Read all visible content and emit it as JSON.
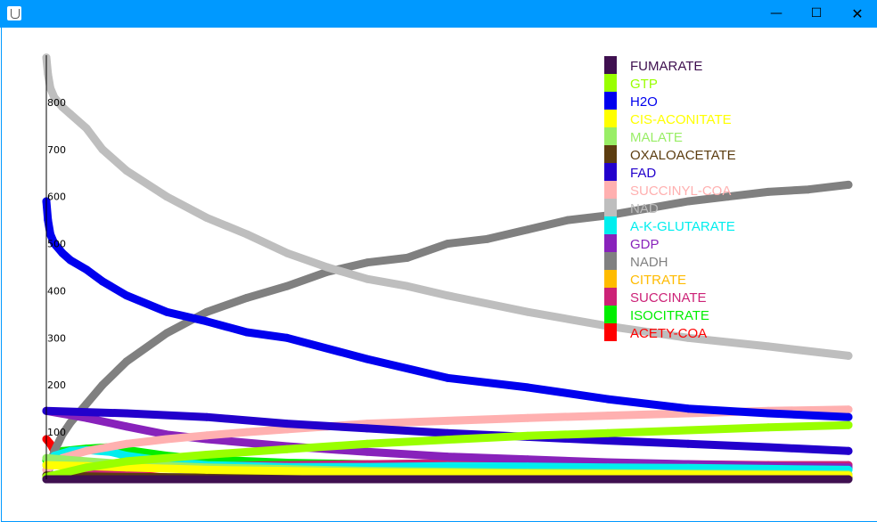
{
  "window": {
    "icons": {
      "app": "java-cup-icon",
      "minimize": "minimize-icon",
      "maximize": "maximize-icon",
      "close": "close-icon"
    }
  },
  "chart_data": {
    "type": "line",
    "title": "",
    "xlabel": "",
    "ylabel": "",
    "ylim": [
      0,
      900
    ],
    "xlim": [
      0,
      100
    ],
    "yticks": [
      100,
      200,
      300,
      400,
      500,
      600,
      700,
      800
    ],
    "grid": false,
    "legend_placement": "top-right",
    "series": [
      {
        "name": "FUMARATE",
        "color": "#3f1050",
        "x": [
          0,
          100
        ],
        "y": [
          0,
          0
        ]
      },
      {
        "name": "GTP",
        "color": "#99ff00",
        "x": [
          0,
          5,
          10,
          20,
          30,
          40,
          50,
          60,
          70,
          80,
          90,
          100
        ],
        "y": [
          5,
          25,
          38,
          52,
          64,
          75,
          84,
          92,
          98,
          104,
          110,
          115
        ]
      },
      {
        "name": "H2O",
        "color": "#0000ee",
        "x": [
          0,
          0.2,
          0.5,
          1,
          2,
          3,
          5,
          7,
          10,
          15,
          20,
          25,
          30,
          40,
          50,
          60,
          70,
          80,
          90,
          100
        ],
        "y": [
          590,
          550,
          520,
          500,
          480,
          465,
          445,
          420,
          390,
          355,
          335,
          312,
          300,
          255,
          215,
          195,
          170,
          150,
          140,
          132
        ]
      },
      {
        "name": "CIS-ACONITATE",
        "color": "#ffff00",
        "x": [
          0,
          5,
          10,
          20,
          40,
          60,
          80,
          100
        ],
        "y": [
          30,
          28,
          25,
          20,
          15,
          12,
          10,
          8
        ]
      },
      {
        "name": "MALATE",
        "color": "#99ee66",
        "x": [
          0,
          5,
          10,
          20,
          40,
          60,
          80,
          100
        ],
        "y": [
          45,
          38,
          32,
          25,
          18,
          14,
          12,
          10
        ]
      },
      {
        "name": "OXALOACETATE",
        "color": "#5c3d10",
        "x": [
          0,
          5,
          10,
          20,
          40,
          60,
          80,
          100
        ],
        "y": [
          8,
          6,
          5,
          4,
          3,
          3,
          2,
          2
        ]
      },
      {
        "name": "FAD",
        "color": "#2200cc",
        "x": [
          0,
          10,
          20,
          30,
          40,
          50,
          60,
          70,
          80,
          90,
          100
        ],
        "y": [
          145,
          140,
          132,
          118,
          108,
          98,
          90,
          82,
          75,
          68,
          60
        ]
      },
      {
        "name": "SUCCINYL-COA",
        "color": "#ffb0b0",
        "x": [
          0,
          2,
          5,
          10,
          15,
          20,
          25,
          30,
          35,
          40,
          50,
          60,
          70,
          80,
          90,
          100
        ],
        "y": [
          20,
          45,
          60,
          75,
          85,
          93,
          100,
          106,
          112,
          118,
          124,
          130,
          135,
          140,
          145,
          148
        ]
      },
      {
        "name": "NAD",
        "color": "#bebebe",
        "x": [
          0,
          0.2,
          0.5,
          1,
          2,
          3,
          5,
          7,
          10,
          15,
          20,
          25,
          30,
          35,
          40,
          45,
          50,
          60,
          70,
          80,
          90,
          100
        ],
        "y": [
          895,
          860,
          830,
          810,
          790,
          775,
          745,
          700,
          655,
          600,
          555,
          520,
          480,
          450,
          425,
          410,
          390,
          355,
          325,
          300,
          282,
          262
        ]
      },
      {
        "name": "A-K-GLUTARATE",
        "color": "#00eeee",
        "x": [
          0,
          1,
          3,
          5,
          8,
          10,
          15,
          20,
          30,
          40,
          50,
          60,
          70,
          80,
          90,
          100
        ],
        "y": [
          30,
          50,
          60,
          62,
          58,
          50,
          38,
          30,
          26,
          26,
          28,
          27,
          25,
          24,
          22,
          20
        ]
      },
      {
        "name": "GDP",
        "color": "#8822bb",
        "x": [
          0,
          5,
          10,
          15,
          20,
          30,
          40,
          50,
          60,
          70,
          80,
          90,
          100
        ],
        "y": [
          145,
          130,
          112,
          95,
          85,
          70,
          58,
          48,
          42,
          36,
          32,
          28,
          25
        ]
      },
      {
        "name": "NADH",
        "color": "#808080",
        "x": [
          0,
          1,
          2,
          3,
          5,
          7,
          10,
          15,
          20,
          25,
          30,
          35,
          40,
          45,
          50,
          55,
          60,
          65,
          70,
          75,
          80,
          85,
          90,
          95,
          100
        ],
        "y": [
          0,
          60,
          95,
          120,
          160,
          200,
          250,
          310,
          355,
          385,
          410,
          440,
          460,
          470,
          500,
          510,
          530,
          550,
          560,
          575,
          590,
          600,
          610,
          615,
          625
        ]
      },
      {
        "name": "CITRATE",
        "color": "#ffbb00",
        "x": [
          0,
          5,
          10,
          20,
          40,
          60,
          80,
          100
        ],
        "y": [
          5,
          4,
          3,
          3,
          2,
          2,
          2,
          2
        ]
      },
      {
        "name": "SUCCINATE",
        "color": "#cc2277",
        "x": [
          0,
          5,
          10,
          20,
          30,
          40,
          50,
          60,
          70,
          80,
          90,
          100
        ],
        "y": [
          5,
          10,
          20,
          28,
          30,
          32,
          34,
          34,
          33,
          32,
          30,
          30
        ]
      },
      {
        "name": "ISOCITRATE",
        "color": "#00ee00",
        "x": [
          0,
          2,
          5,
          8,
          10,
          15,
          20,
          30,
          40,
          50,
          60,
          70,
          80,
          90,
          100
        ],
        "y": [
          40,
          60,
          65,
          68,
          62,
          50,
          42,
          35,
          32,
          30,
          28,
          26,
          25,
          24,
          22
        ]
      },
      {
        "name": "ACETY-COA",
        "color": "#ff0000",
        "x": [
          0,
          0.5,
          1,
          2,
          3,
          5,
          8,
          10,
          15,
          20,
          25,
          30,
          35,
          40,
          50,
          60,
          70,
          80,
          90,
          100
        ],
        "y": [
          85,
          75,
          60,
          45,
          35,
          22,
          12,
          8,
          4,
          3,
          5,
          8,
          15,
          10,
          8,
          10,
          8,
          7,
          6,
          6
        ]
      }
    ]
  }
}
